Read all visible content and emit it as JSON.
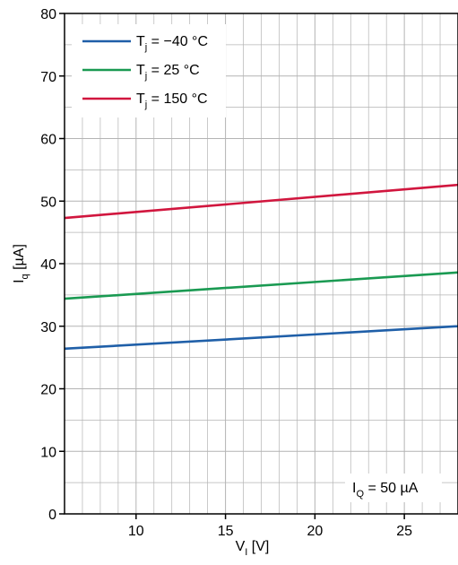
{
  "chart_data": {
    "type": "line",
    "title": "",
    "xlabel": {
      "main": "V",
      "sub": "I",
      "unit": " [V]"
    },
    "ylabel": {
      "main": "I",
      "sub": "q",
      "unit": " [µA]"
    },
    "xlim": [
      6,
      28
    ],
    "ylim": [
      0,
      80
    ],
    "x_ticks": [
      10,
      15,
      20,
      25
    ],
    "y_ticks": [
      0,
      10,
      20,
      30,
      40,
      50,
      60,
      70,
      80
    ],
    "x_minor_step": 1,
    "y_minor_step": 5,
    "grid": true,
    "legend_position": "top-left",
    "series": [
      {
        "name": {
          "main": "T",
          "sub": "j",
          "rest": " = −40 °C"
        },
        "color": "#1f5fa8",
        "x": [
          6,
          28
        ],
        "y": [
          26.4,
          30.0
        ]
      },
      {
        "name": {
          "main": "T",
          "sub": "j",
          "rest": " = 25 °C"
        },
        "color": "#1a9a52",
        "x": [
          6,
          28
        ],
        "y": [
          34.4,
          38.6
        ]
      },
      {
        "name": {
          "main": "T",
          "sub": "j",
          "rest": " = 150 °C"
        },
        "color": "#d1163e",
        "x": [
          6,
          28
        ],
        "y": [
          47.3,
          52.6
        ]
      }
    ],
    "annotation": {
      "main": "I",
      "sub": "Q",
      "rest": " = 50 µA"
    }
  }
}
